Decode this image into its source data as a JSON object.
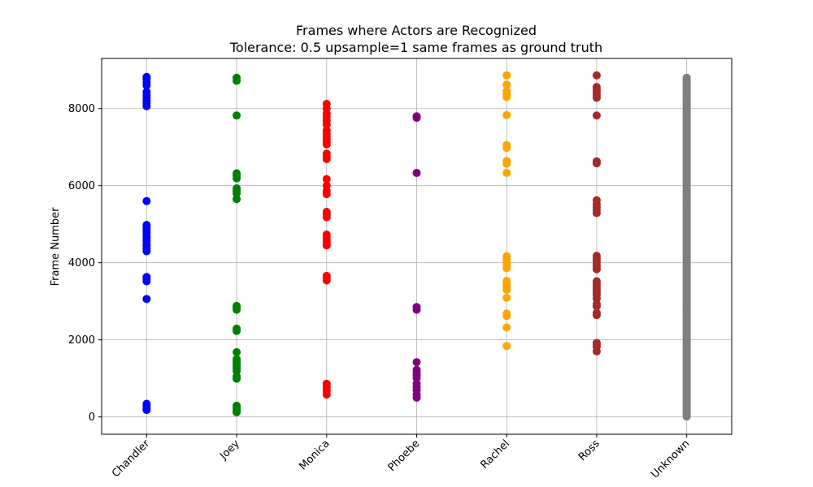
{
  "chart_data": {
    "type": "scatter",
    "title": "Frames where Actors are Recognized",
    "subtitle": "Tolerance: 0.5 upsample=1 same frames as ground truth",
    "xlabel": "",
    "ylabel": "Frame Number",
    "categories": [
      "Chandler",
      "Joey",
      "Monica",
      "Phoebe",
      "Rachel",
      "Ross",
      "Unknown"
    ],
    "ylim": [
      -450,
      9300
    ],
    "yticks": [
      0,
      2000,
      4000,
      6000,
      8000
    ],
    "grid": true,
    "series": [
      {
        "name": "Chandler",
        "color": "#0000ff",
        "values": [
          180,
          230,
          290,
          340,
          3060,
          3520,
          3580,
          3630,
          4300,
          4370,
          4440,
          4510,
          4580,
          4650,
          4720,
          4790,
          4860,
          4930,
          4980,
          5600,
          8060,
          8130,
          8200,
          8270,
          8350,
          8430,
          8600,
          8680,
          8760,
          8820
        ]
      },
      {
        "name": "Joey",
        "color": "#008000",
        "values": [
          120,
          170,
          230,
          290,
          990,
          1050,
          1190,
          1250,
          1310,
          1380,
          1440,
          1500,
          1680,
          2230,
          2290,
          2780,
          2830,
          2880,
          5650,
          5800,
          5870,
          5930,
          6190,
          6260,
          6320,
          7820,
          8720,
          8800
        ]
      },
      {
        "name": "Monica",
        "color": "#ff0000",
        "values": [
          580,
          680,
          780,
          860,
          3540,
          3600,
          3660,
          4450,
          4520,
          4590,
          4660,
          4730,
          5180,
          5250,
          5320,
          5780,
          5860,
          6000,
          6170,
          6690,
          6760,
          6830,
          7070,
          7130,
          7200,
          7280,
          7350,
          7430,
          7580,
          7680,
          7780,
          7870,
          8000,
          8120
        ]
      },
      {
        "name": "Phoebe",
        "color": "#800080",
        "values": [
          500,
          580,
          700,
          780,
          860,
          1010,
          1080,
          1150,
          1220,
          1420,
          2780,
          2850,
          6330,
          7760,
          7800
        ]
      },
      {
        "name": "Rachel",
        "color": "#ffa500",
        "values": [
          1840,
          2320,
          2620,
          2680,
          3090,
          3300,
          3380,
          3480,
          3530,
          3860,
          3930,
          4000,
          4080,
          4170,
          6330,
          6570,
          6640,
          6980,
          7050,
          7830,
          8300,
          8380,
          8450,
          8620,
          8860
        ]
      },
      {
        "name": "Ross",
        "color": "#a52a2a",
        "values": [
          1700,
          1820,
          1880,
          1920,
          2640,
          2700,
          2870,
          2930,
          3070,
          3160,
          3230,
          3300,
          3370,
          3440,
          3520,
          3830,
          3900,
          3970,
          4040,
          4110,
          4180,
          5290,
          5370,
          5440,
          5520,
          5620,
          6580,
          6630,
          7820,
          8280,
          8350,
          8420,
          8490,
          8560,
          8860
        ]
      },
      {
        "name": "Unknown",
        "color": "#808080",
        "values": [
          10,
          40,
          70,
          100,
          130,
          160,
          190,
          220,
          250,
          280,
          310,
          340,
          370,
          400,
          430,
          460,
          490,
          520,
          550,
          580,
          610,
          640,
          670,
          700,
          730,
          760,
          790,
          820,
          850,
          880,
          910,
          940,
          970,
          1000,
          1030,
          1060,
          1090,
          1120,
          1150,
          1180,
          1210,
          1240,
          1270,
          1300,
          1330,
          1360,
          1390,
          1420,
          1450,
          1480,
          1510,
          1540,
          1570,
          1600,
          1630,
          1660,
          1690,
          1720,
          1750,
          1780,
          1810,
          1840,
          1870,
          1900,
          1930,
          1960,
          1990,
          2020,
          2050,
          2080,
          2110,
          2140,
          2170,
          2200,
          2230,
          2260,
          2290,
          2320,
          2350,
          2380,
          2410,
          2440,
          2470,
          2500,
          2530,
          2560,
          2590,
          2620,
          2650,
          2680,
          2710,
          2740,
          2770,
          2800,
          2830,
          2860,
          2890,
          2920,
          2950,
          2980,
          3010,
          3040,
          3070,
          3100,
          3130,
          3160,
          3190,
          3220,
          3250,
          3280,
          3310,
          3340,
          3370,
          3400,
          3430,
          3460,
          3490,
          3520,
          3550,
          3580,
          3610,
          3640,
          3670,
          3700,
          3730,
          3760,
          3790,
          3820,
          3850,
          3880,
          3910,
          3940,
          3970,
          4000,
          4030,
          4060,
          4090,
          4120,
          4150,
          4180,
          4210,
          4240,
          4270,
          4300,
          4330,
          4360,
          4390,
          4420,
          4450,
          4480,
          4510,
          4540,
          4570,
          4600,
          4630,
          4660,
          4690,
          4720,
          4750,
          4780,
          4810,
          4840,
          4870,
          4900,
          4930,
          4960,
          4990,
          5020,
          5050,
          5080,
          5110,
          5140,
          5170,
          5200,
          5230,
          5260,
          5290,
          5320,
          5350,
          5380,
          5410,
          5440,
          5470,
          5500,
          5530,
          5560,
          5590,
          5620,
          5650,
          5680,
          5710,
          5740,
          5770,
          5800,
          5830,
          5860,
          5890,
          5920,
          5950,
          5980,
          6010,
          6040,
          6070,
          6100,
          6130,
          6160,
          6190,
          6220,
          6250,
          6280,
          6310,
          6340,
          6370,
          6400,
          6430,
          6460,
          6490,
          6520,
          6550,
          6580,
          6610,
          6640,
          6670,
          6700,
          6730,
          6760,
          6790,
          6820,
          6850,
          6880,
          6910,
          6940,
          6970,
          7000,
          7030,
          7060,
          7090,
          7120,
          7150,
          7180,
          7210,
          7240,
          7270,
          7300,
          7330,
          7360,
          7390,
          7420,
          7450,
          7480,
          7510,
          7540,
          7570,
          7600,
          7630,
          7660,
          7690,
          7720,
          7750,
          7780,
          7810,
          7840,
          7870,
          7900,
          7930,
          7960,
          7990,
          8020,
          8050,
          8080,
          8110,
          8140,
          8170,
          8200,
          8230,
          8260,
          8290,
          8320,
          8350,
          8380,
          8410,
          8440,
          8470,
          8500,
          8530,
          8560,
          8590,
          8620,
          8650,
          8680,
          8710,
          8740,
          8770,
          8800
        ]
      }
    ]
  }
}
